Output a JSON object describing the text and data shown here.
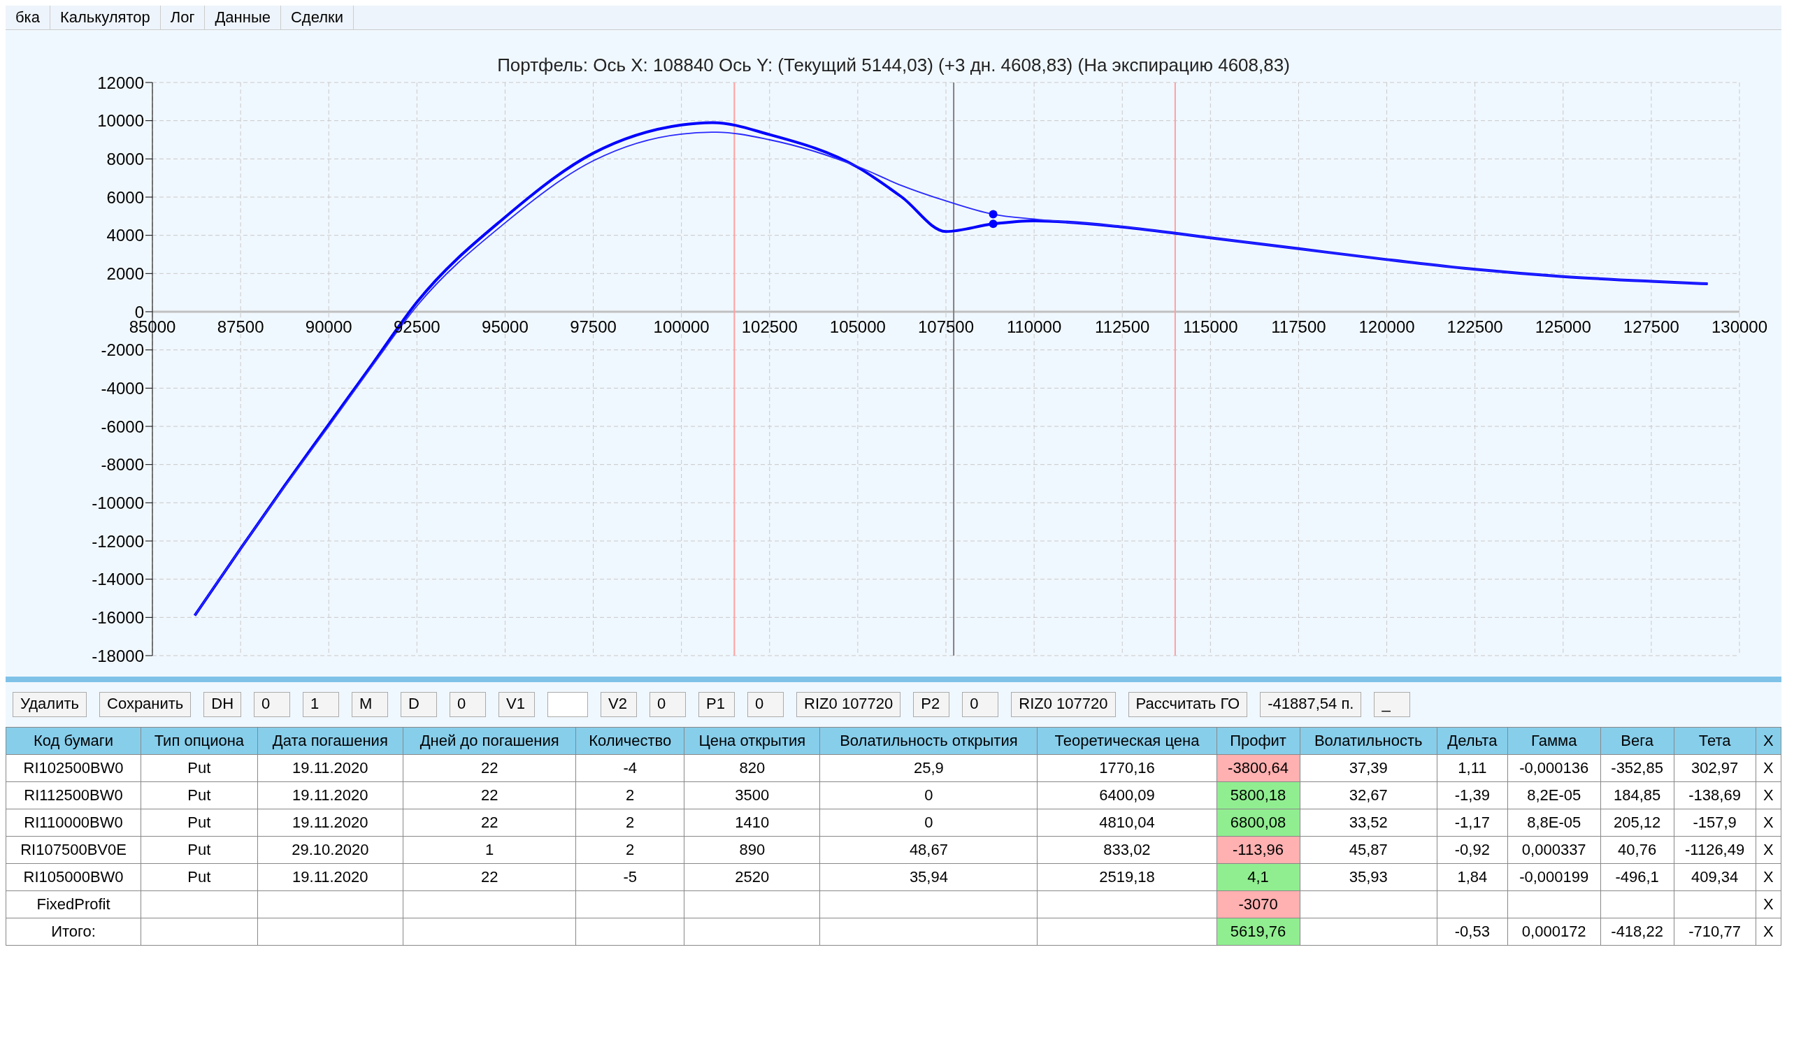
{
  "chart_data": [
    {
      "type": "line",
      "title": "Портфель: Ось X: 108840 Ось Y:  (Текущий 5144,03)  (+3 дн. 4608,83)  (На экспирацию 4608,83)",
      "annotations": [
        "бка",
        "Калькулятор",
        "Лог",
        "Данные",
        "Сделки"
      ],
      "xlim": [
        85000,
        130000
      ],
      "xticks": [
        85000,
        87500,
        90000,
        92500,
        95000,
        97500,
        100000,
        102500,
        105000,
        107500,
        110000,
        112500,
        115000,
        117500,
        120000,
        122500,
        125000,
        127500,
        130000
      ],
      "ylim": [
        -18000,
        12000
      ],
      "yticks": [
        -18000,
        -16000,
        -14000,
        -12000,
        -10000,
        -8000,
        -6000,
        -4000,
        -2000,
        0,
        2000,
        4000,
        6000,
        8000,
        10000,
        12000
      ],
      "grid": true,
      "line_style": "solid",
      "series": [
        {
          "color": "#0000ff",
          "x": [
            86200,
            87500,
            88750,
            90000,
            91250,
            92500,
            95000,
            97500,
            100000,
            100900,
            102500,
            105000,
            106250,
            107500,
            108840,
            110000,
            112500,
            115000,
            117500,
            120000,
            122500,
            125000,
            127500,
            129100
          ],
          "values": [
            -15900,
            -12400,
            -9100,
            -5900,
            -2700,
            500,
            4950,
            8300,
            9780,
            9900,
            9270,
            7560,
            6000,
            4200,
            4600,
            4760,
            4440,
            3870,
            3300,
            2730,
            2220,
            1840,
            1590,
            1460
          ]
        },
        {
          "color": "#2828ff",
          "x": [
            86200,
            87500,
            88750,
            90000,
            91250,
            92500,
            95000,
            97500,
            100000,
            101000,
            102500,
            105000,
            106250,
            107500,
            108840,
            110000,
            112500,
            115000,
            117500,
            120000,
            122500,
            125000,
            127500,
            129100
          ],
          "values": [
            -15900,
            -12400,
            -9150,
            -6000,
            -2800,
            300,
            4650,
            7900,
            9300,
            9400,
            9000,
            7600,
            6600,
            5800,
            5100,
            4850,
            4450,
            3870,
            3300,
            2730,
            2220,
            1840,
            1590,
            1460
          ]
        },
        {
          "type": "scatter",
          "color": "#0000ff",
          "x": [
            108840,
            108840
          ],
          "values": [
            5100,
            4600
          ]
        }
      ],
      "ref_lines": [
        {
          "axis": "x",
          "value": 101500,
          "color": "#ffa0a0"
        },
        {
          "axis": "x",
          "value": 107720,
          "color": "#808080"
        },
        {
          "axis": "x",
          "value": 114000,
          "color": "#ffa0a0"
        }
      ]
    },
    {
      "type": "other",
      "annotations": [
        "Удалить",
        "Сохранить",
        "DH",
        "0",
        "1",
        "M",
        "D",
        "0",
        "V1",
        "V2",
        "0",
        "P1",
        "0",
        "RIZ0 107720",
        "P2",
        "0",
        "RIZ0 107720",
        "Рассчитать ГО",
        "-41887,54 п.",
        "_"
      ],
      "categories": [
        "Код бумаги",
        "Тип опциона",
        "Дата погашения",
        "Дней до погашения",
        "Количество",
        "Цена открытия",
        "Волатильность открытия",
        "Теоретическая цена",
        "Профит",
        "Волатильность",
        "Дельта",
        "Гамма",
        "Вега",
        "Тета",
        "X"
      ],
      "cell_labels": [
        [
          "RI102500BW0",
          "Put",
          "19.11.2020",
          "22",
          "-4",
          "820",
          "25,9",
          "1770,16",
          "-3800,64",
          "37,39",
          "1,11",
          "-0,000136",
          "-352,85",
          "302,97",
          "X"
        ],
        [
          "RI112500BW0",
          "Put",
          "19.11.2020",
          "22",
          "2",
          "3500",
          "0",
          "6400,09",
          "5800,18",
          "32,67",
          "-1,39",
          "8,2E-05",
          "184,85",
          "-138,69",
          "X"
        ],
        [
          "RI110000BW0",
          "Put",
          "19.11.2020",
          "22",
          "2",
          "1410",
          "0",
          "4810,04",
          "6800,08",
          "33,52",
          "-1,17",
          "8,8E-05",
          "205,12",
          "-157,9",
          "X"
        ],
        [
          "RI107500BV0E",
          "Put",
          "29.10.2020",
          "1",
          "2",
          "890",
          "48,67",
          "833,02",
          "-113,96",
          "45,87",
          "-0,92",
          "0,000337",
          "40,76",
          "-1126,49",
          "X"
        ],
        [
          "RI105000BW0",
          "Put",
          "19.11.2020",
          "22",
          "-5",
          "2520",
          "35,94",
          "2519,18",
          "4,1",
          "35,93",
          "1,84",
          "-0,000199",
          "-496,1",
          "409,34",
          "X"
        ],
        [
          "FixedProfit",
          null,
          null,
          null,
          null,
          null,
          null,
          null,
          "-3070",
          null,
          null,
          null,
          null,
          null,
          "X"
        ],
        [
          "Итого:",
          null,
          null,
          null,
          null,
          null,
          null,
          null,
          "5619,76",
          null,
          "-0,53",
          "0,000172",
          "-418,22",
          "-710,77",
          "X"
        ]
      ],
      "colors": [
        [
          null,
          null,
          null,
          null,
          null,
          null,
          null,
          null,
          "#ffb0b0",
          null,
          null,
          null,
          null,
          null,
          null
        ],
        [
          null,
          null,
          null,
          null,
          null,
          null,
          null,
          null,
          "#90ee90",
          null,
          null,
          null,
          null,
          null,
          null
        ],
        [
          null,
          null,
          null,
          null,
          null,
          null,
          null,
          null,
          "#90ee90",
          null,
          null,
          null,
          null,
          null,
          null
        ],
        [
          null,
          null,
          null,
          null,
          null,
          null,
          null,
          null,
          "#ffb0b0",
          null,
          null,
          null,
          null,
          null,
          null
        ],
        [
          null,
          null,
          null,
          null,
          null,
          null,
          null,
          null,
          "#90ee90",
          null,
          null,
          null,
          null,
          null,
          null
        ],
        [
          null,
          null,
          null,
          null,
          null,
          null,
          null,
          null,
          "#ffb0b0",
          null,
          null,
          null,
          null,
          null,
          null
        ],
        [
          null,
          null,
          null,
          null,
          null,
          null,
          null,
          null,
          "#90ee90",
          null,
          null,
          null,
          null,
          null,
          null
        ]
      ]
    }
  ]
}
